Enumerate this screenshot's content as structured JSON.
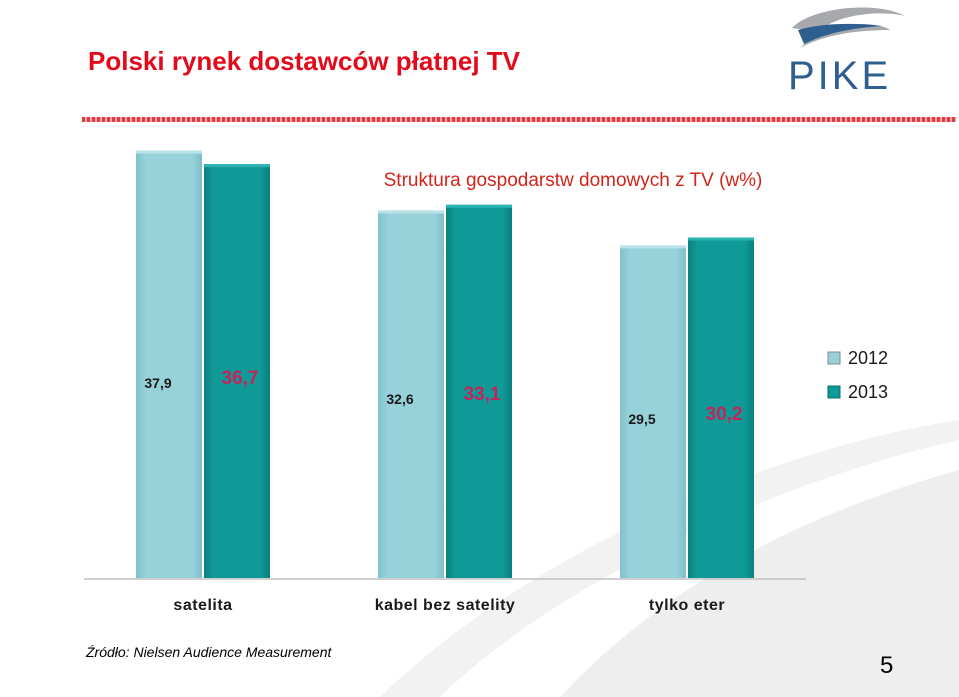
{
  "slide": {
    "title": "Polski rynek dostawców płatnej TV",
    "logo_text": "PIKE",
    "source": "Źródło: Nielsen Audience Measurement",
    "page_number": "5"
  },
  "colors": {
    "title": "#e30b1b",
    "chart_title": "#d1251a",
    "data_label_2013": "#c2255c",
    "series_2012": "#97d1da",
    "series_2013": "#0f9a98",
    "logo": "#2f5f90"
  },
  "chart_data": {
    "type": "bar",
    "title": "Struktura gospodarstw domowych z TV (w%)",
    "categories": [
      "satelita",
      "kabel bez satelity",
      "tylko eter"
    ],
    "series": [
      {
        "name": "2012",
        "values": [
          37.9,
          32.6,
          29.5
        ],
        "labels": [
          "37,9",
          "32,6",
          "29,5"
        ]
      },
      {
        "name": "2013",
        "values": [
          36.7,
          33.1,
          30.2
        ],
        "labels": [
          "36,7",
          "33,1",
          "30,2"
        ]
      }
    ],
    "ylim": [
      0,
      40
    ],
    "grid": false,
    "legend": "right"
  }
}
